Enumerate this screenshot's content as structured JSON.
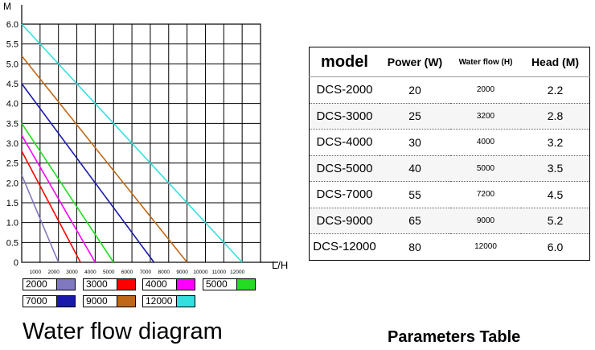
{
  "chart_data": {
    "type": "line",
    "title": "",
    "ylabel": "M",
    "xlabel": "L/H",
    "xlim": [
      0,
      13000
    ],
    "ylim": [
      0,
      6.0
    ],
    "yticks": [
      "0",
      "0.5",
      "1.0",
      "1.5",
      "2.0",
      "2.5",
      "3.0",
      "3.5",
      "4.0",
      "4.5",
      "5.0",
      "5.5",
      "6.0"
    ],
    "xticks": [
      "1000",
      "2000",
      "3000",
      "4000",
      "5000",
      "6000",
      "7000",
      "8000",
      "9000",
      "10000",
      "11000",
      "12000"
    ],
    "grid": true,
    "series": [
      {
        "name": "2000",
        "color": "#8078c0",
        "x": [
          0,
          2000
        ],
        "y": [
          2.2,
          0
        ]
      },
      {
        "name": "3000",
        "color": "#ff0000",
        "x": [
          0,
          3200
        ],
        "y": [
          2.8,
          0
        ]
      },
      {
        "name": "4000",
        "color": "#ff00ff",
        "x": [
          0,
          4000
        ],
        "y": [
          3.2,
          0
        ]
      },
      {
        "name": "5000",
        "color": "#22dd22",
        "x": [
          0,
          5000
        ],
        "y": [
          3.5,
          0
        ]
      },
      {
        "name": "7000",
        "color": "#1a1aaa",
        "x": [
          0,
          7200
        ],
        "y": [
          4.5,
          0
        ]
      },
      {
        "name": "9000",
        "color": "#c06818",
        "x": [
          0,
          9000
        ],
        "y": [
          5.2,
          0
        ]
      },
      {
        "name": "12000",
        "color": "#33e0e0",
        "x": [
          0,
          12000
        ],
        "y": [
          6.0,
          0
        ]
      }
    ],
    "caption": "Water flow diagram"
  },
  "table": {
    "caption": "Parameters Table",
    "headers": [
      "model",
      "Power (W)",
      "Water flow (H)",
      "Head (M)"
    ],
    "rows": [
      [
        "DCS-2000",
        "20",
        "2000",
        "2.2"
      ],
      [
        "DCS-3000",
        "25",
        "3200",
        "2.8"
      ],
      [
        "DCS-4000",
        "30",
        "4000",
        "3.2"
      ],
      [
        "DCS-5000",
        "40",
        "5000",
        "3.5"
      ],
      [
        "DCS-7000",
        "55",
        "7200",
        "4.5"
      ],
      [
        "DCS-9000",
        "65",
        "9000",
        "5.2"
      ],
      [
        "DCS-12000",
        "80",
        "12000",
        "6.0"
      ]
    ]
  }
}
